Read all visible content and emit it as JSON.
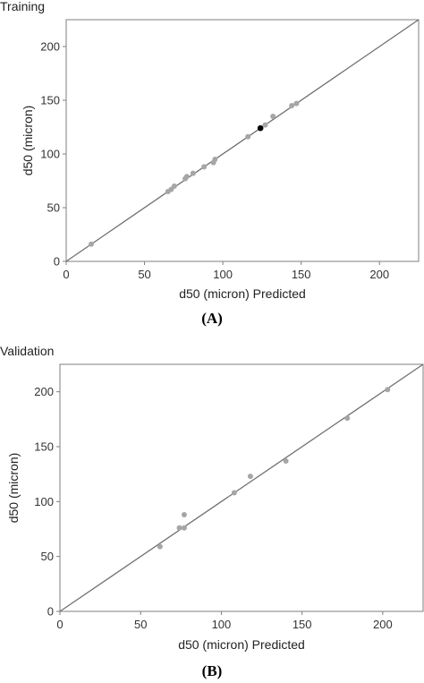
{
  "chart_data": [
    {
      "type": "scatter",
      "panel_title": "Training",
      "caption": "(A)",
      "xlabel": "d50 (micron) Predicted",
      "ylabel": "d50 (micron)",
      "xlim": [
        0,
        225
      ],
      "ylim": [
        0,
        225
      ],
      "xticks": [
        0,
        50,
        100,
        150,
        200
      ],
      "yticks": [
        0,
        50,
        100,
        150,
        200
      ],
      "reference_line": "y = x",
      "point_color": "#a6a6a6",
      "highlight_color": "#000000",
      "grid": false,
      "points": [
        {
          "x": 16,
          "y": 16
        },
        {
          "x": 65,
          "y": 65
        },
        {
          "x": 67,
          "y": 67
        },
        {
          "x": 69,
          "y": 70
        },
        {
          "x": 76,
          "y": 77
        },
        {
          "x": 77,
          "y": 79
        },
        {
          "x": 81,
          "y": 82
        },
        {
          "x": 88,
          "y": 88
        },
        {
          "x": 94,
          "y": 92
        },
        {
          "x": 95,
          "y": 95
        },
        {
          "x": 116,
          "y": 116
        },
        {
          "x": 124,
          "y": 124,
          "highlight": true
        },
        {
          "x": 127,
          "y": 127
        },
        {
          "x": 132,
          "y": 135
        },
        {
          "x": 144,
          "y": 145
        },
        {
          "x": 147,
          "y": 147
        }
      ]
    },
    {
      "type": "scatter",
      "panel_title": "Validation",
      "caption": "(B)",
      "xlabel": "d50 (micron) Predicted",
      "ylabel": "d50 (micron)",
      "xlim": [
        0,
        225
      ],
      "ylim": [
        0,
        225
      ],
      "xticks": [
        0,
        50,
        100,
        150,
        200
      ],
      "yticks": [
        0,
        50,
        100,
        150,
        200
      ],
      "reference_line": "y = x",
      "point_color": "#a6a6a6",
      "grid": false,
      "points": [
        {
          "x": 62,
          "y": 59
        },
        {
          "x": 74,
          "y": 76
        },
        {
          "x": 77,
          "y": 76
        },
        {
          "x": 77,
          "y": 88
        },
        {
          "x": 108,
          "y": 108
        },
        {
          "x": 118,
          "y": 123
        },
        {
          "x": 140,
          "y": 137
        },
        {
          "x": 178,
          "y": 176
        },
        {
          "x": 203,
          "y": 202
        }
      ]
    }
  ]
}
